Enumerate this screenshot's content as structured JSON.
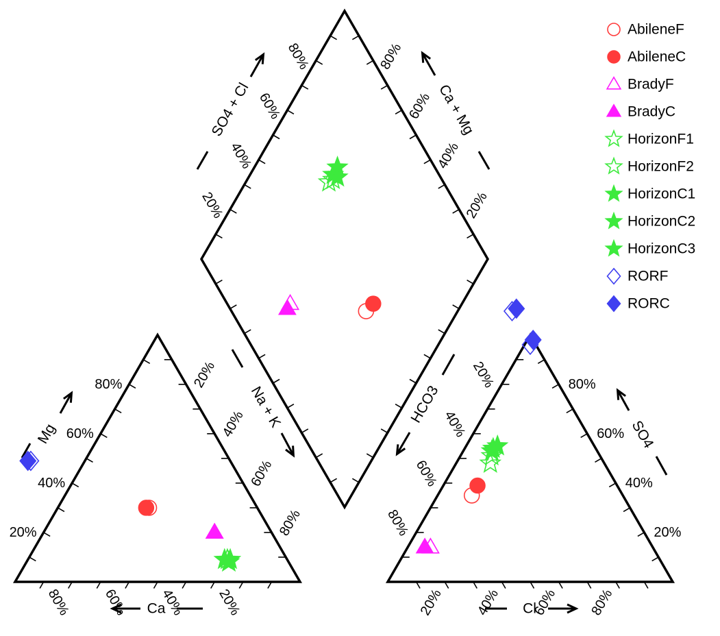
{
  "chart_data": {
    "type": "scatter",
    "subtype": "piper-diagram",
    "title": "",
    "panels": {
      "cations": {
        "axis_titles": {
          "magnesium": "Mg",
          "calcium": "Ca",
          "sodium_potassium": "Na + K"
        },
        "tick_labels": {
          "magnesium": [
            "20%",
            "40%",
            "60%",
            "80%"
          ],
          "calcium": [
            "80%",
            "60%",
            "40%",
            "20%"
          ],
          "sodium_potassium": [
            "20%",
            "40%",
            "60%",
            "80%"
          ]
        }
      },
      "anions": {
        "axis_titles": {
          "chloride": "Cl",
          "sulfate": "SO4",
          "bicarbonate": "HCO3"
        },
        "tick_labels": {
          "chloride": [
            "20%",
            "40%",
            "60%",
            "80%"
          ],
          "sulfate": [
            "20%",
            "40%",
            "60%",
            "80%"
          ],
          "bicarbonate": [
            "20%",
            "40%",
            "60%",
            "80%"
          ]
        }
      },
      "diamond": {
        "axis_titles": {
          "sulfate_chloride": "SO4 + Cl",
          "calcium_magnesium": "Ca + Mg"
        },
        "tick_labels": {
          "sulfate_chloride": [
            "20%",
            "40%",
            "60%",
            "80%"
          ],
          "calcium_magnesium": [
            "20%",
            "40%",
            "60%",
            "80%"
          ]
        }
      }
    },
    "legend_position": "top-right",
    "series": [
      {
        "name": "AbileneF",
        "color": "#ff3b3b",
        "marker": "circle",
        "filled": false,
        "cations": {
          "mg": 30,
          "ca": 38
        },
        "anions": {
          "cl": 12,
          "so4": 35
        }
      },
      {
        "name": "AbileneC",
        "color": "#ff3b3b",
        "marker": "circle",
        "filled": true,
        "cations": {
          "mg": 30,
          "ca": 39
        },
        "anions": {
          "cl": 12,
          "so4": 39
        }
      },
      {
        "name": "BradyF",
        "color": "#ff1aff",
        "marker": "triangle",
        "filled": false,
        "cations": {
          "mg": 20,
          "ca": 20
        },
        "anions": {
          "cl": 8,
          "so4": 14
        }
      },
      {
        "name": "BradyC",
        "color": "#ff1aff",
        "marker": "triangle",
        "filled": true,
        "cations": {
          "mg": 20,
          "ca": 20
        },
        "anions": {
          "cl": 6,
          "so4": 14
        }
      },
      {
        "name": "HorizonF1",
        "color": "#3dea3d",
        "marker": "star",
        "filled": false,
        "cations": {
          "mg": 9,
          "ca": 21
        },
        "anions": {
          "cl": 11,
          "so4": 51
        }
      },
      {
        "name": "HorizonF2",
        "color": "#3dea3d",
        "marker": "star",
        "filled": false,
        "cations": {
          "mg": 8,
          "ca": 21
        },
        "anions": {
          "cl": 12,
          "so4": 48
        }
      },
      {
        "name": "HorizonC1",
        "color": "#3dea3d",
        "marker": "star",
        "filled": true,
        "cations": {
          "mg": 9,
          "ca": 20
        },
        "anions": {
          "cl": 11,
          "so4": 55
        }
      },
      {
        "name": "HorizonC2",
        "color": "#3dea3d",
        "marker": "star",
        "filled": true,
        "cations": {
          "mg": 8,
          "ca": 21
        },
        "anions": {
          "cl": 10,
          "so4": 53
        }
      },
      {
        "name": "HorizonC3",
        "color": "#3dea3d",
        "marker": "star",
        "filled": true,
        "cations": {
          "mg": 9,
          "ca": 22
        },
        "anions": {
          "cl": 10,
          "so4": 54
        }
      },
      {
        "name": "RORF",
        "color": "#3f3ff0",
        "marker": "diamond",
        "filled": false,
        "cations": {
          "mg": 49,
          "ca": 70
        },
        "anions": {
          "cl": 2,
          "so4": 96
        }
      },
      {
        "name": "RORC",
        "color": "#3f3ff0",
        "marker": "diamond",
        "filled": true,
        "cations": {
          "mg": 49,
          "ca": 71
        },
        "anions": {
          "cl": 2,
          "so4": 98
        }
      }
    ]
  }
}
